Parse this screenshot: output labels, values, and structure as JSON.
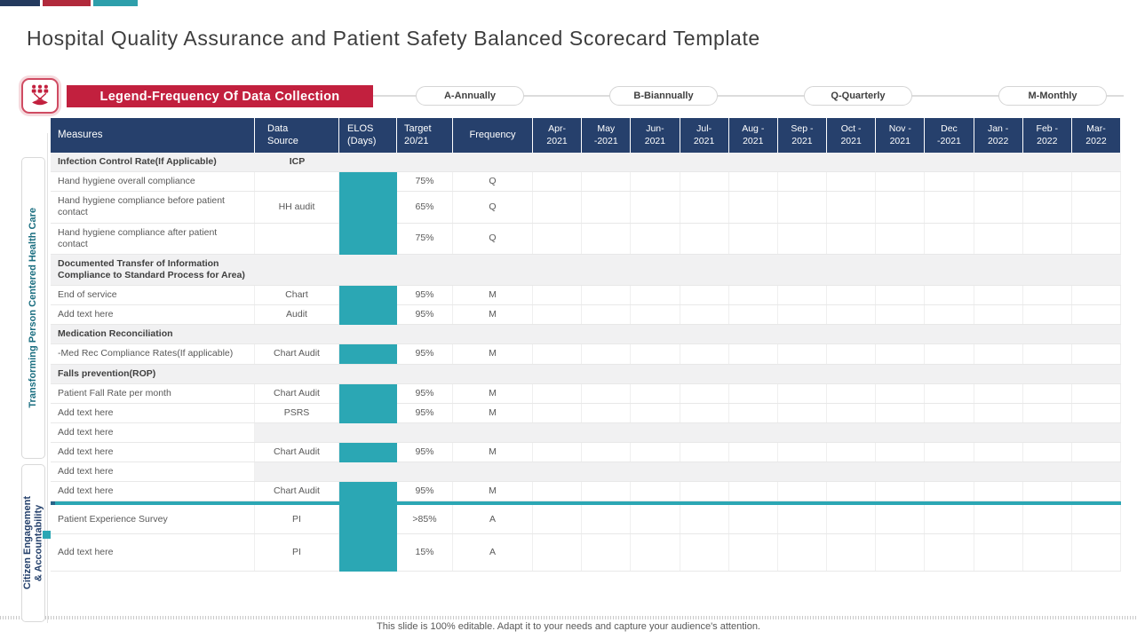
{
  "slide": {
    "title": "Hospital Quality Assurance and Patient Safety Balanced Scorecard Template",
    "footer_note": "This slide is 100% editable. Adapt it to your needs and capture your audience's attention."
  },
  "accent_colors": [
    "#243A5E",
    "#B12A3C",
    "#2E9FAB"
  ],
  "colors": {
    "header_navy": "#26406C",
    "bar_teal": "#2BA7B4",
    "legend_red": "#C2203E",
    "section_gray": "#F1F1F2"
  },
  "legend": {
    "title": "Legend-Frequency Of Data Collection",
    "icon": "people-on-hand-icon",
    "pills": [
      {
        "label": "A-Annually"
      },
      {
        "label": "B-Biannually"
      },
      {
        "label": "Q-Quarterly"
      },
      {
        "label": "M-Monthly"
      }
    ]
  },
  "side_labels": [
    {
      "label": "Transforming Person Centered Health Care",
      "color": "#1A6E80"
    },
    {
      "label": "Citizen Engagement\n& Accountability",
      "color": "#24406B"
    }
  ],
  "table": {
    "headers": [
      "Measures",
      "Data\nSource",
      "ELOS\n(Days)",
      "Target\n20/21",
      "Frequency"
    ],
    "months": [
      "Apr-\n2021",
      "May\n-2021",
      "Jun-\n2021",
      "Jul-\n2021",
      "Aug -\n2021",
      "Sep -\n2021",
      "Oct -\n2021",
      "Nov -\n2021",
      "Dec\n-2021",
      "Jan -\n2022",
      "Feb -\n2022",
      "Mar-\n2022"
    ],
    "rows": [
      {
        "type": "section",
        "measure": "Infection Control Rate(If Applicable)",
        "source": "ICP",
        "target": "",
        "freq": ""
      },
      {
        "type": "data",
        "measure": "Hand hygiene overall compliance",
        "source": "",
        "target": "75%",
        "freq": "Q",
        "bar": "g1"
      },
      {
        "type": "data",
        "measure": "Hand hygiene compliance before patient contact",
        "source": "HH audit",
        "target": "65%",
        "freq": "Q",
        "bar": "g1"
      },
      {
        "type": "data",
        "measure": "Hand hygiene compliance after patient contact",
        "source": "",
        "target": "75%",
        "freq": "Q",
        "bar": "g1"
      },
      {
        "type": "section",
        "measure": "Documented Transfer of Information Compliance to Standard Process for Area)",
        "source": "",
        "target": "",
        "freq": ""
      },
      {
        "type": "data",
        "measure": "End of service",
        "source": "Chart",
        "target": "95%",
        "freq": "M",
        "bar": "g2"
      },
      {
        "type": "data",
        "measure": "Add text here",
        "source": "Audit",
        "target": "95%",
        "freq": "M",
        "bar": "g2"
      },
      {
        "type": "section",
        "measure": "Medication Reconciliation",
        "source": "",
        "target": "",
        "freq": ""
      },
      {
        "type": "data",
        "measure": "-Med Rec Compliance Rates(If applicable)",
        "source": "Chart Audit",
        "target": "95%",
        "freq": "M",
        "bar": "g3"
      },
      {
        "type": "section",
        "measure": "Falls prevention(ROP)",
        "source": "",
        "target": "",
        "freq": ""
      },
      {
        "type": "data",
        "measure": "Patient Fall Rate per month",
        "source": "Chart Audit",
        "target": "95%",
        "freq": "M",
        "bar": "g4"
      },
      {
        "type": "data",
        "measure": "Add text here",
        "source": "PSRS",
        "target": "95%",
        "freq": "M",
        "bar": "g4"
      },
      {
        "type": "data-empty",
        "measure": "Add text here",
        "source": "",
        "target": "",
        "freq": ""
      },
      {
        "type": "data",
        "measure": "Add text here",
        "source": "Chart Audit",
        "target": "95%",
        "freq": "M",
        "bar": "g5"
      },
      {
        "type": "data-empty",
        "measure": "Add text here",
        "source": "",
        "target": "",
        "freq": ""
      },
      {
        "type": "data",
        "measure": "Add text here",
        "source": "Chart Audit",
        "target": "95%",
        "freq": "M",
        "bar": "g6"
      },
      {
        "type": "divider"
      },
      {
        "type": "data",
        "measure": "Patient Experience Survey",
        "source": "PI",
        "target": ">85%",
        "freq": "A",
        "bar": "g6"
      },
      {
        "type": "data",
        "measure": "Add text here",
        "source": "PI",
        "target": "15%",
        "freq": "A",
        "bar": "g6"
      }
    ]
  }
}
